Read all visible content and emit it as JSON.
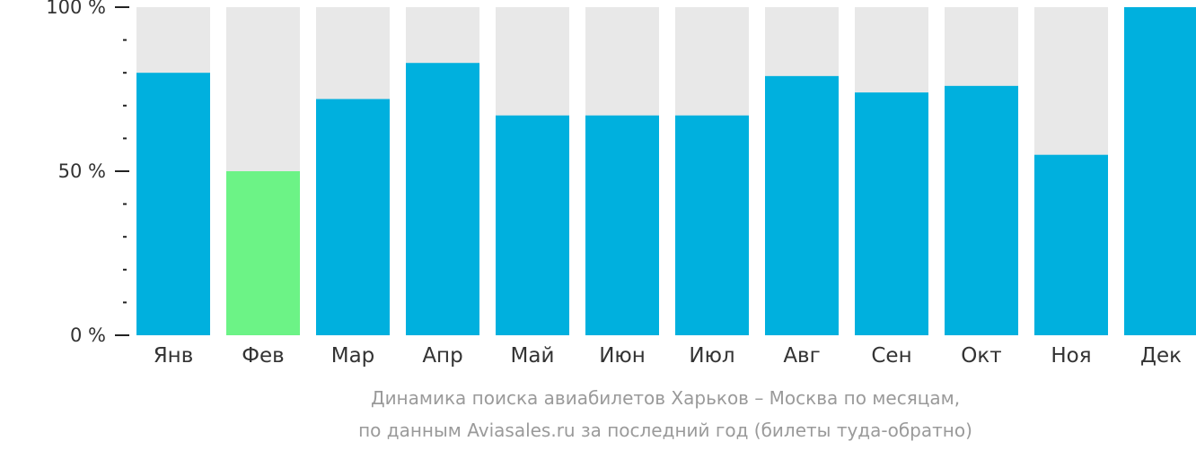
{
  "chart_data": {
    "type": "bar",
    "categories": [
      "Янв",
      "Фев",
      "Мар",
      "Апр",
      "Май",
      "Июн",
      "Июл",
      "Авг",
      "Сен",
      "Окт",
      "Ноя",
      "Дек"
    ],
    "values": [
      80,
      50,
      72,
      83,
      67,
      67,
      67,
      79,
      74,
      76,
      55,
      100
    ],
    "highlight_index": 1,
    "ylim": [
      0,
      100
    ],
    "yticks": [
      {
        "value": 0,
        "label": "0 %"
      },
      {
        "value": 50,
        "label": "50 %"
      },
      {
        "value": 100,
        "label": "100 %"
      }
    ],
    "minor_tick_step": 10,
    "grid": false,
    "colors": {
      "bar": "#00b0de",
      "highlight": "#6cf386",
      "track": "#e8e8e8",
      "axis": "#222222"
    }
  },
  "caption": {
    "line1": "Динамика поиска авиабилетов Харьков – Москва по месяцам,",
    "line2": "по данным Aviasales.ru за последний год (билеты туда-обратно)"
  }
}
